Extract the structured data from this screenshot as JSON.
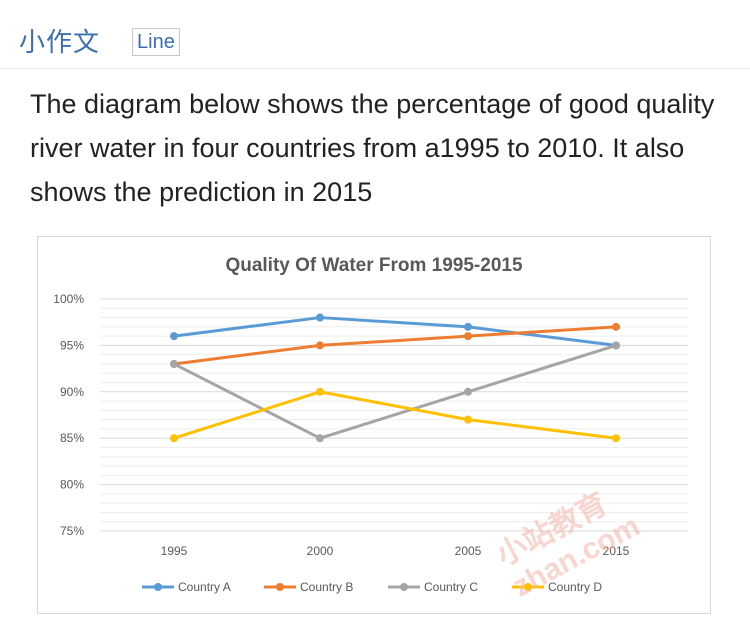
{
  "header": {
    "title": "小作文",
    "tag": "Line"
  },
  "description": "The diagram below shows the percentage of good quality river water in four countries from a1995 to 2010. It also shows the prediction in 2015",
  "watermark": "小站教育 zhan.com",
  "chart_data": {
    "type": "line",
    "title": "Quality Of Water From 1995-2015",
    "categories": [
      "1995",
      "2000",
      "2005",
      "2015"
    ],
    "ylim": [
      75,
      100
    ],
    "yticks": [
      "75%",
      "80%",
      "85%",
      "90%",
      "95%",
      "100%"
    ],
    "ytick_values": [
      75,
      80,
      85,
      90,
      95,
      100
    ],
    "grid": true,
    "legend_position": "bottom",
    "series": [
      {
        "name": "Country A",
        "color": "#5b9bd5",
        "values": [
          96,
          98,
          97,
          95
        ]
      },
      {
        "name": "Country B",
        "color": "#ed7d31",
        "values": [
          93,
          95,
          96,
          97
        ]
      },
      {
        "name": "Country C",
        "color": "#a5a5a5",
        "values": [
          93,
          85,
          90,
          95
        ]
      },
      {
        "name": "Country D",
        "color": "#ffc000",
        "values": [
          85,
          90,
          87,
          85
        ]
      }
    ]
  }
}
